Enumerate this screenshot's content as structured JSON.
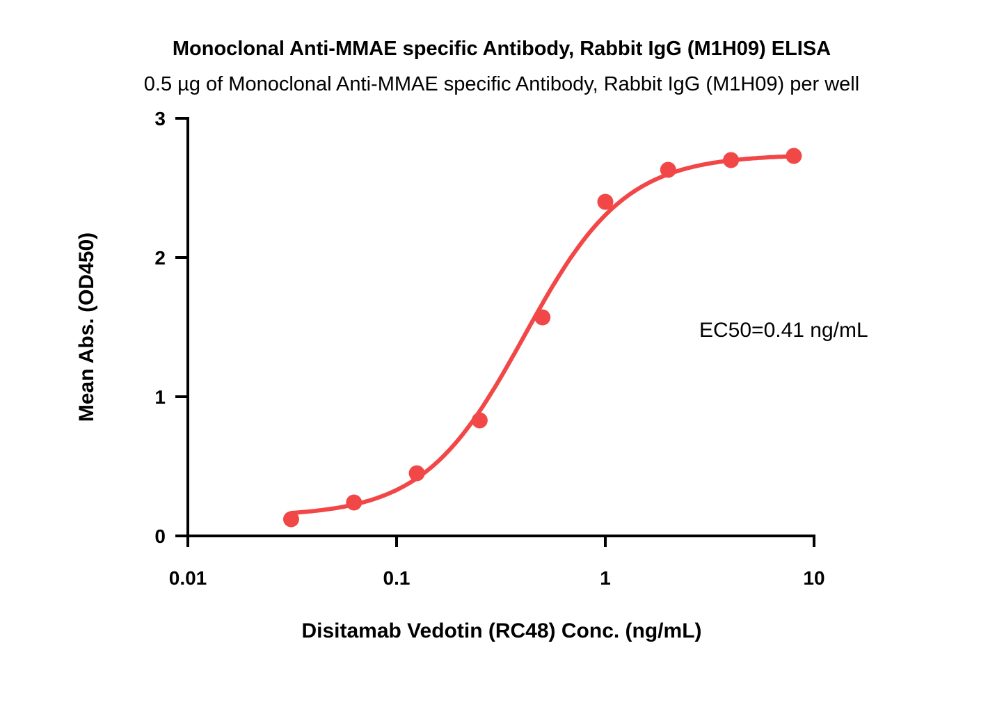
{
  "chart_data": {
    "type": "scatter",
    "title": "Monoclonal Anti-MMAE specific Antibody, Rabbit IgG (M1H09) ELISA",
    "subtitle": "0.5 µg of Monoclonal Anti-MMAE specific Antibody, Rabbit IgG (M1H09) per well",
    "xlabel": "Disitamab Vedotin (RC48) Conc. (ng/mL)",
    "ylabel": "Mean Abs. (OD450)",
    "xscale": "log",
    "xlim": [
      0.01,
      10
    ],
    "ylim": [
      0,
      3
    ],
    "xticks": [
      0.01,
      0.1,
      1,
      10
    ],
    "xtick_labels": [
      "0.01",
      "0.1",
      "1",
      "10"
    ],
    "yticks": [
      0,
      1,
      2,
      3
    ],
    "ytick_labels": [
      "0",
      "1",
      "2",
      "3"
    ],
    "grid": false,
    "annotation": "EC50=0.41 ng/mL",
    "series": [
      {
        "name": "M1H09",
        "color": "#f24747",
        "x": [
          0.03125,
          0.0625,
          0.125,
          0.25,
          0.5,
          1,
          2,
          4,
          8
        ],
        "y": [
          0.12,
          0.24,
          0.45,
          0.83,
          1.57,
          2.4,
          2.63,
          2.7,
          2.73
        ],
        "fit": {
          "model": "4PL",
          "bottom": 0.14,
          "top": 2.74,
          "ec50": 0.41,
          "hill": 1.8
        }
      }
    ]
  }
}
